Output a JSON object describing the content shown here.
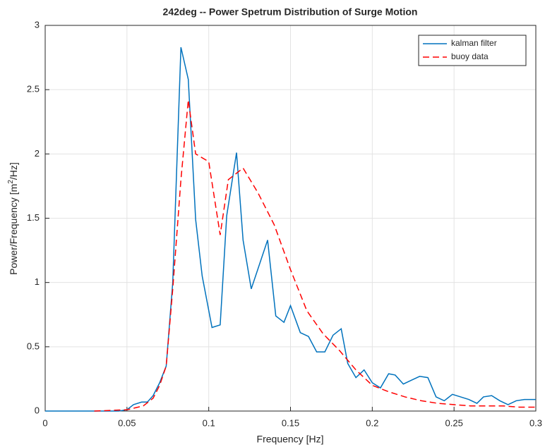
{
  "chart_data": {
    "type": "line",
    "title": "242deg -- Power Spetrum Distribution of Surge Motion",
    "x_label": "Frequency [Hz]",
    "y_label": [
      "Power/Frequency [m",
      "2",
      "/Hz]"
    ],
    "xlim": [
      0,
      0.3
    ],
    "xticks": [
      0,
      0.05,
      0.1,
      0.15,
      0.2,
      0.25,
      0.3
    ],
    "ylim": [
      0,
      3
    ],
    "yticks": [
      0,
      0.5,
      1,
      1.5,
      2,
      2.5,
      3
    ],
    "grid": true,
    "legend": "northeast",
    "series": [
      {
        "name": "kalman filter",
        "color": "#0072bd",
        "dash": false,
        "x": [
          0,
          0.045,
          0.05,
          0.054,
          0.059,
          0.0625,
          0.066,
          0.07,
          0.074,
          0.078,
          0.083,
          0.0875,
          0.092,
          0.096,
          0.102,
          0.107,
          0.111,
          0.117,
          0.121,
          0.126,
          0.136,
          0.141,
          0.146,
          0.15,
          0.156,
          0.161,
          0.166,
          0.171,
          0.176,
          0.181,
          0.185,
          0.19,
          0.195,
          0.2,
          0.205,
          0.21,
          0.214,
          0.219,
          0.224,
          0.229,
          0.234,
          0.239,
          0.244,
          0.249,
          0.254,
          0.259,
          0.264,
          0.268,
          0.273,
          0.278,
          0.283,
          0.288,
          0.293,
          0.3
        ],
        "values": [
          0,
          0,
          0.01,
          0.05,
          0.07,
          0.07,
          0.12,
          0.22,
          0.35,
          1.0,
          2.83,
          2.58,
          1.49,
          1.05,
          0.65,
          0.67,
          1.52,
          2.01,
          1.33,
          0.95,
          1.33,
          0.74,
          0.69,
          0.82,
          0.61,
          0.58,
          0.46,
          0.46,
          0.59,
          0.64,
          0.37,
          0.26,
          0.32,
          0.22,
          0.18,
          0.29,
          0.28,
          0.21,
          0.24,
          0.27,
          0.26,
          0.11,
          0.08,
          0.13,
          0.11,
          0.09,
          0.06,
          0.11,
          0.12,
          0.08,
          0.05,
          0.08,
          0.09,
          0.09
        ]
      },
      {
        "name": "buoy data",
        "color": "#ff0000",
        "dash": true,
        "x": [
          0.03,
          0.05,
          0.06,
          0.066,
          0.07,
          0.074,
          0.078,
          0.083,
          0.0875,
          0.092,
          0.1,
          0.107,
          0.112,
          0.121,
          0.13,
          0.14,
          0.15,
          0.16,
          0.17,
          0.18,
          0.19,
          0.2,
          0.21,
          0.22,
          0.23,
          0.24,
          0.25,
          0.26,
          0.27,
          0.28,
          0.29,
          0.3
        ],
        "values": [
          0,
          0.01,
          0.04,
          0.1,
          0.2,
          0.35,
          0.95,
          1.8,
          2.42,
          2.0,
          1.94,
          1.37,
          1.8,
          1.89,
          1.7,
          1.45,
          1.1,
          0.78,
          0.6,
          0.47,
          0.32,
          0.2,
          0.15,
          0.11,
          0.08,
          0.06,
          0.05,
          0.04,
          0.04,
          0.04,
          0.03,
          0.03
        ]
      }
    ]
  }
}
